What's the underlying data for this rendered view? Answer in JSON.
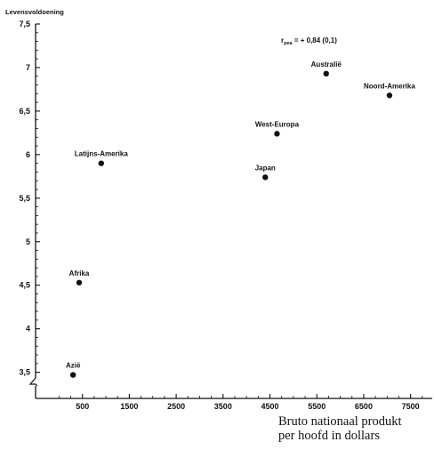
{
  "chart_data": {
    "type": "scatter",
    "title": "",
    "xlabel": [
      "Bruto nationaal produkt",
      "per hoofd in dollars"
    ],
    "ylabel": "Levensvoldoening",
    "annotation": {
      "prefix": "r",
      "sub": "pea",
      "suffix": " = + 0,84 (0,1)"
    },
    "xlim": [
      -500,
      8000
    ],
    "ylim": [
      3.2,
      7.5
    ],
    "y_axis_break": true,
    "x_ticks": [
      500,
      1500,
      2500,
      3500,
      4500,
      5500,
      6500,
      7500
    ],
    "x_tick_labels": [
      "500",
      "1500",
      "2500",
      "3500",
      "4500",
      "5500",
      "6500",
      "7500"
    ],
    "y_ticks": [
      3.5,
      4,
      4.5,
      5,
      5.5,
      6,
      6.5,
      7,
      7.5
    ],
    "y_tick_labels": [
      "3,5",
      "4",
      "4,5",
      "5",
      "5,5",
      "6",
      "6,5",
      "7",
      "7,5"
    ],
    "points": [
      {
        "label": "Azië",
        "x": 300,
        "y": 3.47
      },
      {
        "label": "Afrika",
        "x": 430,
        "y": 4.53
      },
      {
        "label": "Latijns-Amerika",
        "x": 900,
        "y": 5.9
      },
      {
        "label": "Japan",
        "x": 4400,
        "y": 5.74
      },
      {
        "label": "West-Europa",
        "x": 4650,
        "y": 6.24
      },
      {
        "label": "Australië",
        "x": 5700,
        "y": 6.93
      },
      {
        "label": "Noord-Amerika",
        "x": 7050,
        "y": 6.68
      }
    ],
    "grid": false,
    "legend": "none",
    "colors": {
      "ink": "#111111",
      "background": "#ffffff"
    }
  }
}
